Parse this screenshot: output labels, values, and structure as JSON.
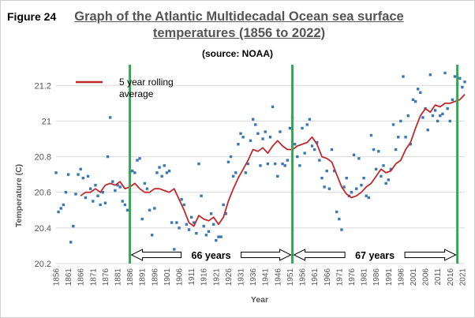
{
  "figure_label": "Figure 24",
  "title_line1": "Graph of the Atlantic Multidecadal Ocean sea surface",
  "title_line2": "temperatures (1856 to 2022)",
  "source": "(source: NOAA)",
  "colors": {
    "points": "#3a78b5",
    "rolling": "#c0282c",
    "markers": "#32a852",
    "grid": "#d9d9d9"
  },
  "chart_data": {
    "type": "scatter",
    "xlabel": "Year",
    "ylabel": "Temperature (C)",
    "xlim": [
      1856,
      2022
    ],
    "ylim": [
      20.2,
      21.25
    ],
    "yticks": [
      20.2,
      20.4,
      20.6,
      20.8,
      21,
      21.2
    ],
    "ytick_labels": [
      "20.2",
      "20.4",
      "20.6",
      "20.8",
      "21",
      "21.2"
    ],
    "xticks": [
      1856,
      1861,
      1866,
      1871,
      1876,
      1881,
      1886,
      1891,
      1896,
      1901,
      1906,
      1911,
      1916,
      1921,
      1926,
      1931,
      1936,
      1941,
      1946,
      1951,
      1956,
      1961,
      1966,
      1971,
      1976,
      1981,
      1986,
      1991,
      1996,
      2001,
      2006,
      2011,
      2016,
      2021
    ],
    "grid": "horizontal",
    "legend": {
      "label": "5 year rolling average",
      "line1": "5 year rolling",
      "line2": "average",
      "placement": "top-left"
    },
    "annual_points": [
      [
        1856,
        20.71
      ],
      [
        1857,
        20.49
      ],
      [
        1858,
        20.51
      ],
      [
        1859,
        20.53
      ],
      [
        1860,
        20.6
      ],
      [
        1861,
        20.7
      ],
      [
        1862,
        20.32
      ],
      [
        1863,
        20.41
      ],
      [
        1864,
        20.59
      ],
      [
        1865,
        20.7
      ],
      [
        1866,
        20.73
      ],
      [
        1867,
        20.68
      ],
      [
        1868,
        20.57
      ],
      [
        1869,
        20.69
      ],
      [
        1870,
        20.62
      ],
      [
        1871,
        20.55
      ],
      [
        1872,
        20.64
      ],
      [
        1873,
        20.58
      ],
      [
        1874,
        20.53
      ],
      [
        1875,
        20.6
      ],
      [
        1876,
        20.54
      ],
      [
        1877,
        20.8
      ],
      [
        1878,
        21.02
      ],
      [
        1879,
        20.66
      ],
      [
        1880,
        20.61
      ],
      [
        1881,
        20.64
      ],
      [
        1882,
        20.63
      ],
      [
        1883,
        20.55
      ],
      [
        1884,
        20.53
      ],
      [
        1885,
        20.5
      ],
      [
        1886,
        20.71
      ],
      [
        1887,
        20.72
      ],
      [
        1888,
        20.71
      ],
      [
        1889,
        20.78
      ],
      [
        1890,
        20.79
      ],
      [
        1891,
        20.45
      ],
      [
        1892,
        20.65
      ],
      [
        1893,
        20.62
      ],
      [
        1894,
        20.5
      ],
      [
        1895,
        20.36
      ],
      [
        1896,
        20.51
      ],
      [
        1897,
        20.71
      ],
      [
        1898,
        20.74
      ],
      [
        1899,
        20.69
      ],
      [
        1900,
        20.75
      ],
      [
        1901,
        20.71
      ],
      [
        1902,
        20.72
      ],
      [
        1903,
        20.43
      ],
      [
        1904,
        20.28
      ],
      [
        1905,
        20.43
      ],
      [
        1906,
        20.4
      ],
      [
        1907,
        20.56
      ],
      [
        1908,
        20.53
      ],
      [
        1909,
        20.42
      ],
      [
        1910,
        20.39
      ],
      [
        1911,
        20.46
      ],
      [
        1912,
        20.43
      ],
      [
        1913,
        20.37
      ],
      [
        1914,
        20.76
      ],
      [
        1915,
        20.58
      ],
      [
        1916,
        20.41
      ],
      [
        1917,
        20.36
      ],
      [
        1918,
        20.38
      ],
      [
        1919,
        20.48
      ],
      [
        1920,
        20.42
      ],
      [
        1921,
        20.33
      ],
      [
        1922,
        20.35
      ],
      [
        1923,
        20.35
      ],
      [
        1924,
        20.53
      ],
      [
        1925,
        20.48
      ],
      [
        1926,
        20.77
      ],
      [
        1927,
        20.8
      ],
      [
        1928,
        20.69
      ],
      [
        1929,
        20.71
      ],
      [
        1930,
        20.87
      ],
      [
        1931,
        20.93
      ],
      [
        1932,
        20.91
      ],
      [
        1933,
        20.71
      ],
      [
        1934,
        20.76
      ],
      [
        1935,
        20.89
      ],
      [
        1936,
        21.01
      ],
      [
        1937,
        20.98
      ],
      [
        1938,
        20.93
      ],
      [
        1939,
        20.75
      ],
      [
        1940,
        20.9
      ],
      [
        1941,
        20.94
      ],
      [
        1942,
        20.76
      ],
      [
        1943,
        20.91
      ],
      [
        1944,
        21.08
      ],
      [
        1945,
        20.76
      ],
      [
        1946,
        20.69
      ],
      [
        1947,
        20.94
      ],
      [
        1948,
        20.76
      ],
      [
        1949,
        20.75
      ],
      [
        1950,
        20.78
      ],
      [
        1951,
        20.96
      ],
      [
        1952,
        21.02
      ],
      [
        1953,
        20.87
      ],
      [
        1954,
        20.8
      ],
      [
        1955,
        20.75
      ],
      [
        1956,
        20.96
      ],
      [
        1957,
        20.82
      ],
      [
        1958,
        20.98
      ],
      [
        1959,
        21.01
      ],
      [
        1960,
        20.86
      ],
      [
        1961,
        20.84
      ],
      [
        1962,
        20.88
      ],
      [
        1963,
        20.78
      ],
      [
        1964,
        20.68
      ],
      [
        1965,
        20.63
      ],
      [
        1966,
        20.72
      ],
      [
        1967,
        20.62
      ],
      [
        1968,
        20.84
      ],
      [
        1969,
        20.72
      ],
      [
        1970,
        20.49
      ],
      [
        1971,
        20.45
      ],
      [
        1972,
        20.39
      ],
      [
        1973,
        20.63
      ],
      [
        1974,
        20.68
      ],
      [
        1975,
        20.58
      ],
      [
        1976,
        20.6
      ],
      [
        1977,
        20.81
      ],
      [
        1978,
        20.62
      ],
      [
        1979,
        20.79
      ],
      [
        1980,
        20.64
      ],
      [
        1981,
        20.68
      ],
      [
        1982,
        20.58
      ],
      [
        1983,
        20.57
      ],
      [
        1984,
        20.92
      ],
      [
        1985,
        20.84
      ],
      [
        1986,
        20.73
      ],
      [
        1987,
        20.83
      ],
      [
        1988,
        20.69
      ],
      [
        1989,
        20.75
      ],
      [
        1990,
        20.65
      ],
      [
        1991,
        20.67
      ],
      [
        1992,
        20.73
      ],
      [
        1993,
        20.98
      ],
      [
        1994,
        20.84
      ],
      [
        1995,
        20.91
      ],
      [
        1996,
        21.0
      ],
      [
        1997,
        21.25
      ],
      [
        1998,
        20.91
      ],
      [
        1999,
        21.03
      ],
      [
        2000,
        20.87
      ],
      [
        2001,
        21.12
      ],
      [
        2002,
        21.11
      ],
      [
        2003,
        21.18
      ],
      [
        2004,
        21.16
      ],
      [
        2005,
        21.02
      ],
      [
        2006,
        21.07
      ],
      [
        2007,
        20.95
      ],
      [
        2008,
        21.26
      ],
      [
        2009,
        21.03
      ],
      [
        2010,
        21.06
      ],
      [
        2011,
        21.0
      ],
      [
        2012,
        21.03
      ],
      [
        2013,
        21.04
      ],
      [
        2014,
        21.27
      ],
      [
        2015,
        21.07
      ],
      [
        2016,
        21.0
      ],
      [
        2017,
        21.12
      ],
      [
        2018,
        21.25
      ],
      [
        2019,
        21.21
      ],
      [
        2020,
        21.24
      ],
      [
        2021,
        21.19
      ],
      [
        2022,
        21.22
      ]
    ],
    "rolling_average": [
      [
        1866,
        20.58
      ],
      [
        1868,
        20.6
      ],
      [
        1870,
        20.6
      ],
      [
        1872,
        20.62
      ],
      [
        1874,
        20.6
      ],
      [
        1876,
        20.64
      ],
      [
        1878,
        20.65
      ],
      [
        1880,
        20.64
      ],
      [
        1882,
        20.66
      ],
      [
        1884,
        20.62
      ],
      [
        1886,
        20.63
      ],
      [
        1888,
        20.65
      ],
      [
        1890,
        20.62
      ],
      [
        1892,
        20.6
      ],
      [
        1894,
        20.6
      ],
      [
        1896,
        20.62
      ],
      [
        1898,
        20.62
      ],
      [
        1900,
        20.61
      ],
      [
        1902,
        20.6
      ],
      [
        1904,
        20.62
      ],
      [
        1906,
        20.56
      ],
      [
        1908,
        20.5
      ],
      [
        1910,
        20.43
      ],
      [
        1912,
        20.41
      ],
      [
        1914,
        20.47
      ],
      [
        1916,
        20.45
      ],
      [
        1918,
        20.44
      ],
      [
        1920,
        20.46
      ],
      [
        1922,
        20.42
      ],
      [
        1924,
        20.46
      ],
      [
        1926,
        20.55
      ],
      [
        1928,
        20.62
      ],
      [
        1930,
        20.68
      ],
      [
        1932,
        20.73
      ],
      [
        1934,
        20.78
      ],
      [
        1936,
        20.84
      ],
      [
        1938,
        20.83
      ],
      [
        1940,
        20.85
      ],
      [
        1942,
        20.82
      ],
      [
        1944,
        20.86
      ],
      [
        1946,
        20.89
      ],
      [
        1948,
        20.86
      ],
      [
        1950,
        20.84
      ],
      [
        1952,
        20.84
      ],
      [
        1954,
        20.86
      ],
      [
        1956,
        20.87
      ],
      [
        1958,
        20.88
      ],
      [
        1960,
        20.91
      ],
      [
        1962,
        20.87
      ],
      [
        1964,
        20.8
      ],
      [
        1966,
        20.79
      ],
      [
        1968,
        20.77
      ],
      [
        1970,
        20.7
      ],
      [
        1972,
        20.63
      ],
      [
        1974,
        20.59
      ],
      [
        1976,
        20.57
      ],
      [
        1978,
        20.58
      ],
      [
        1980,
        20.6
      ],
      [
        1982,
        20.63
      ],
      [
        1984,
        20.65
      ],
      [
        1986,
        20.69
      ],
      [
        1988,
        20.73
      ],
      [
        1990,
        20.71
      ],
      [
        1992,
        20.72
      ],
      [
        1994,
        20.76
      ],
      [
        1996,
        20.78
      ],
      [
        1998,
        20.84
      ],
      [
        2000,
        20.88
      ],
      [
        2002,
        20.96
      ],
      [
        2004,
        21.03
      ],
      [
        2006,
        21.07
      ],
      [
        2008,
        21.05
      ],
      [
        2010,
        21.09
      ],
      [
        2012,
        21.08
      ],
      [
        2014,
        21.1
      ],
      [
        2016,
        21.1
      ],
      [
        2018,
        21.11
      ],
      [
        2020,
        21.12
      ],
      [
        2022,
        21.15
      ]
    ],
    "markers": [
      1886,
      1952,
      2019
    ],
    "spans": [
      {
        "from": 1886,
        "to": 1952,
        "label": "66 years"
      },
      {
        "from": 1952,
        "to": 2019,
        "label": "67 years"
      }
    ]
  }
}
